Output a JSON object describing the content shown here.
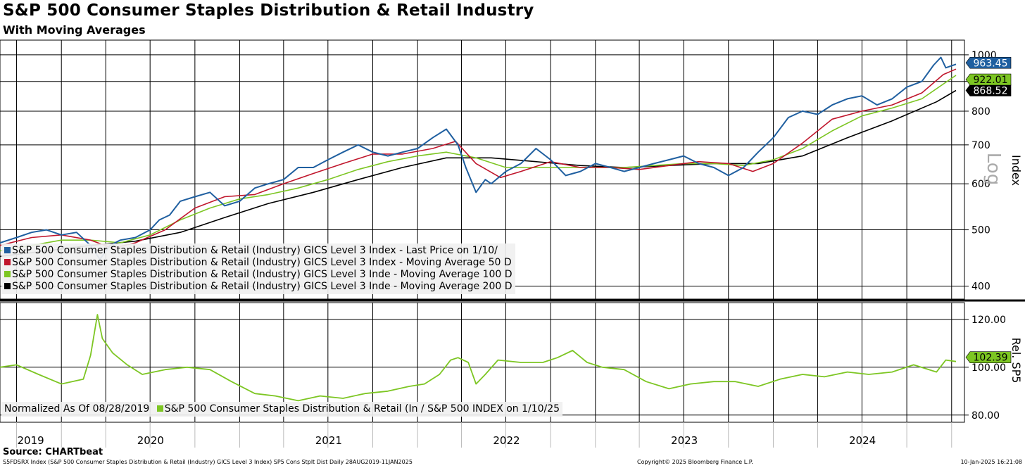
{
  "header": {
    "title": "S&P 500 Consumer Staples Distribution & Retail Industry",
    "subtitle": "With Moving Averages"
  },
  "footer": {
    "source": "Source: CHARTbeat",
    "description": "S5FDSRX Index (S&P 500 Consumer Staples Distribution & Retail (Industry) GICS Level 3 Index) SP5 Cons Stplt Dist  Daily 28AUG2019-11JAN2025",
    "copyright": "Copyright© 2025 Bloomberg Finance L.P.",
    "timestamp": "10-Jan-2025 16:21:08"
  },
  "colors": {
    "price": "#1f5fa0",
    "ma50": "#c0162c",
    "ma100": "#7dc623",
    "ma200": "#000000",
    "relative": "#7dc623"
  },
  "chart_data": [
    {
      "type": "line",
      "scale": "log",
      "ylabel": "Index",
      "scale_label": "Log",
      "ylim": [
        380,
        1060
      ],
      "yticks": [
        400,
        500,
        600,
        700,
        800,
        900,
        1000
      ],
      "x_years": [
        "2019",
        "2020",
        "2021",
        "2022",
        "2023",
        "2024"
      ],
      "x_start": "2019-08-28",
      "x_end": "2025-01-10",
      "grid": true,
      "legend": {
        "position": "bottom-left",
        "entries": [
          "S&P 500 Consumer Staples Distribution & Retail (Industry) GICS Level 3 Index - Last Price on 1/10/",
          "S&P 500 Consumer Staples Distribution & Retail (Industry) GICS Level 3 Index - Moving Average 50 D",
          "S&P 500 Consumer Staples Distribution & Retail (Industry) GICS Level 3 Inde - Moving Average 100 D",
          "S&P 500 Consumer Staples Distribution & Retail (Industry) GICS Level 3 Inde - Moving Average 200 D"
        ]
      },
      "last_value_labels": [
        "963.45",
        "922.01",
        "868.52"
      ],
      "series": [
        {
          "key": "price",
          "x": [
            "2019-08-28",
            "2019-10-01",
            "2019-11-01",
            "2019-12-01",
            "2020-01-01",
            "2020-02-01",
            "2020-03-01",
            "2020-03-20",
            "2020-04-10",
            "2020-05-01",
            "2020-06-01",
            "2020-07-01",
            "2020-07-20",
            "2020-08-10",
            "2020-09-01",
            "2020-10-01",
            "2020-11-01",
            "2020-12-01",
            "2021-01-01",
            "2021-02-01",
            "2021-03-01",
            "2021-04-01",
            "2021-05-01",
            "2021-06-01",
            "2021-07-01",
            "2021-08-01",
            "2021-09-01",
            "2021-10-01",
            "2021-11-01",
            "2021-12-01",
            "2022-01-01",
            "2022-02-01",
            "2022-03-01",
            "2022-03-25",
            "2022-04-10",
            "2022-05-01",
            "2022-05-20",
            "2022-06-01",
            "2022-07-01",
            "2022-08-01",
            "2022-09-01",
            "2022-10-01",
            "2022-11-01",
            "2022-12-01",
            "2023-01-01",
            "2023-02-01",
            "2023-03-01",
            "2023-04-01",
            "2023-05-01",
            "2023-06-01",
            "2023-07-01",
            "2023-08-01",
            "2023-09-01",
            "2023-10-01",
            "2023-11-01",
            "2023-12-01",
            "2024-01-01",
            "2024-02-01",
            "2024-03-01",
            "2024-04-01",
            "2024-05-01",
            "2024-06-01",
            "2024-07-01",
            "2024-08-01",
            "2024-09-01",
            "2024-10-01",
            "2024-11-01",
            "2024-11-25",
            "2024-12-10",
            "2024-12-20",
            "2025-01-10"
          ],
          "y": [
            475,
            485,
            495,
            500,
            490,
            495,
            470,
            445,
            470,
            480,
            485,
            500,
            520,
            530,
            560,
            570,
            580,
            550,
            560,
            590,
            600,
            610,
            640,
            640,
            660,
            680,
            700,
            680,
            670,
            680,
            690,
            720,
            745,
            700,
            640,
            580,
            610,
            600,
            630,
            650,
            690,
            660,
            620,
            630,
            650,
            640,
            630,
            640,
            650,
            660,
            670,
            650,
            640,
            620,
            640,
            680,
            720,
            780,
            800,
            790,
            820,
            840,
            850,
            820,
            840,
            880,
            900,
            960,
            990,
            950,
            963.45
          ]
        },
        {
          "key": "ma50",
          "x": [
            "2019-08-28",
            "2019-11-01",
            "2020-01-01",
            "2020-03-01",
            "2020-04-15",
            "2020-06-01",
            "2020-08-01",
            "2020-10-01",
            "2020-12-01",
            "2021-02-01",
            "2021-04-01",
            "2021-06-01",
            "2021-08-01",
            "2021-10-01",
            "2021-12-01",
            "2022-02-01",
            "2022-03-20",
            "2022-05-01",
            "2022-06-20",
            "2022-08-01",
            "2022-10-01",
            "2022-12-01",
            "2023-02-01",
            "2023-04-01",
            "2023-06-01",
            "2023-08-01",
            "2023-10-01",
            "2023-11-20",
            "2024-01-01",
            "2024-03-01",
            "2024-05-01",
            "2024-07-01",
            "2024-09-01",
            "2024-11-01",
            "2024-12-15",
            "2025-01-10"
          ],
          "y": [
            470,
            485,
            490,
            480,
            465,
            475,
            500,
            545,
            570,
            575,
            600,
            625,
            650,
            675,
            675,
            690,
            710,
            650,
            615,
            630,
            655,
            640,
            640,
            635,
            645,
            655,
            650,
            630,
            650,
            705,
            775,
            800,
            820,
            860,
            925,
            945
          ]
        },
        {
          "key": "ma100",
          "x": [
            "2019-08-28",
            "2019-11-01",
            "2020-01-01",
            "2020-03-01",
            "2020-05-01",
            "2020-07-01",
            "2020-09-01",
            "2020-11-01",
            "2021-01-01",
            "2021-03-01",
            "2021-05-01",
            "2021-07-01",
            "2021-09-01",
            "2021-11-01",
            "2022-01-01",
            "2022-03-01",
            "2022-05-01",
            "2022-07-01",
            "2022-09-01",
            "2022-11-01",
            "2023-01-01",
            "2023-03-01",
            "2023-05-01",
            "2023-07-01",
            "2023-09-01",
            "2023-11-01",
            "2024-01-01",
            "2024-03-01",
            "2024-05-01",
            "2024-07-01",
            "2024-09-01",
            "2024-11-01",
            "2025-01-10"
          ],
          "y": [
            460,
            470,
            480,
            480,
            475,
            490,
            520,
            545,
            565,
            575,
            590,
            610,
            635,
            655,
            670,
            680,
            665,
            640,
            640,
            640,
            640,
            640,
            645,
            650,
            650,
            645,
            660,
            690,
            740,
            785,
            810,
            840,
            922.01
          ]
        },
        {
          "key": "ma200",
          "x": [
            "2019-08-28",
            "2019-12-01",
            "2020-03-01",
            "2020-06-01",
            "2020-09-01",
            "2020-12-01",
            "2021-03-01",
            "2021-06-01",
            "2021-09-01",
            "2021-12-01",
            "2022-03-01",
            "2022-06-01",
            "2022-09-01",
            "2022-12-01",
            "2023-03-01",
            "2023-06-01",
            "2023-09-01",
            "2023-12-01",
            "2024-03-01",
            "2024-06-01",
            "2024-09-01",
            "2024-12-01",
            "2025-01-10"
          ],
          "y": [
            450,
            460,
            470,
            478,
            495,
            525,
            555,
            580,
            610,
            640,
            665,
            665,
            655,
            645,
            640,
            645,
            650,
            650,
            670,
            720,
            770,
            830,
            868.52
          ]
        }
      ]
    },
    {
      "type": "line",
      "ylabel": "Rel. SP5",
      "ylim": [
        77,
        127
      ],
      "yticks": [
        80.0,
        100.0,
        120.0
      ],
      "ytick_labels": [
        "80.00",
        "100.00",
        "120.00"
      ],
      "grid": true,
      "legend": {
        "position": "bottom-left",
        "normalized_note": "Normalized As Of 08/28/2019",
        "entries": [
          "S&P 500 Consumer Staples Distribution & Retail (In / S&P 500 INDEX on 1/10/25"
        ]
      },
      "last_value_label": "102.39",
      "series": [
        {
          "key": "relative",
          "x": [
            "2019-08-28",
            "2019-10-01",
            "2019-11-15",
            "2020-01-01",
            "2020-02-15",
            "2020-03-01",
            "2020-03-15",
            "2020-03-25",
            "2020-04-15",
            "2020-05-15",
            "2020-06-15",
            "2020-08-01",
            "2020-09-15",
            "2020-11-01",
            "2020-12-15",
            "2021-02-01",
            "2021-03-15",
            "2021-05-01",
            "2021-06-15",
            "2021-08-01",
            "2021-09-15",
            "2021-11-01",
            "2021-12-15",
            "2022-01-15",
            "2022-02-15",
            "2022-03-10",
            "2022-03-25",
            "2022-04-15",
            "2022-05-01",
            "2022-05-20",
            "2022-06-15",
            "2022-08-01",
            "2022-09-15",
            "2022-10-15",
            "2022-11-15",
            "2022-12-15",
            "2023-01-15",
            "2023-03-01",
            "2023-04-15",
            "2023-06-01",
            "2023-07-15",
            "2023-09-01",
            "2023-10-15",
            "2023-12-01",
            "2024-01-15",
            "2024-03-01",
            "2024-04-15",
            "2024-06-01",
            "2024-07-15",
            "2024-09-01",
            "2024-10-15",
            "2024-12-01",
            "2024-12-20",
            "2025-01-10"
          ],
          "y": [
            100,
            101,
            97,
            93,
            95,
            105,
            122,
            112,
            106,
            101,
            97,
            99,
            100,
            99,
            94,
            89,
            88,
            86,
            88,
            87,
            89,
            90,
            92,
            93,
            97,
            103,
            104,
            102,
            93,
            97,
            103,
            102,
            102,
            104,
            107,
            102,
            100,
            99,
            94,
            91,
            93,
            94,
            94,
            92,
            95,
            97,
            96,
            98,
            97,
            98,
            101,
            98,
            103,
            102.39
          ]
        }
      ]
    }
  ]
}
